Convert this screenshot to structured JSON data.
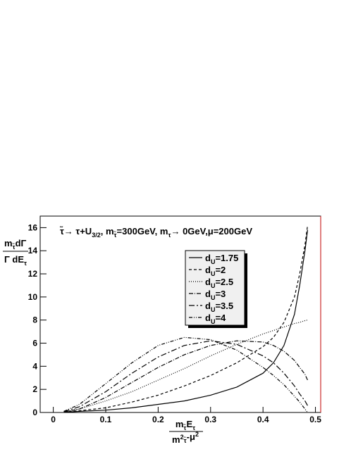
{
  "chart_data": {
    "type": "line",
    "title": [
      {
        "text": "τ̃→ τ+U"
      },
      {
        "text": "3/2",
        "shift": "sub"
      },
      {
        "text": ", m"
      },
      {
        "text": "τ̃",
        "shift": "sub"
      },
      {
        "text": "=300GeV, m"
      },
      {
        "text": "τ",
        "shift": "sub"
      },
      {
        "text": "→ 0GeV,μ=200GeV"
      }
    ],
    "ylabel": {
      "numerator": [
        {
          "text": "m"
        },
        {
          "text": "τ̃",
          "shift": "sub"
        },
        {
          "text": "dΓ"
        }
      ],
      "denominator": [
        {
          "text": "Γ dE"
        },
        {
          "text": "τ",
          "shift": "sub"
        }
      ]
    },
    "xlabel": {
      "numerator": [
        {
          "text": "m"
        },
        {
          "text": "τ̃",
          "shift": "sub"
        },
        {
          "text": "E"
        },
        {
          "text": "τ",
          "shift": "sub"
        }
      ],
      "denominator": [
        {
          "text": "m"
        },
        {
          "text": "2",
          "shift": "sup"
        },
        {
          "text": "τ̃",
          "shift": "sub"
        },
        {
          "text": "-μ"
        },
        {
          "text": "2",
          "shift": "sup"
        }
      ]
    },
    "x": [
      0.02,
      0.05,
      0.1,
      0.15,
      0.2,
      0.25,
      0.3,
      0.35,
      0.4,
      0.42,
      0.44,
      0.46,
      0.47,
      0.48,
      0.485
    ],
    "series": [
      {
        "name": {
          "base": "d",
          "sub": "U",
          "rest": "=1.75"
        },
        "color": "#000000",
        "dash": "none",
        "values": [
          0.02,
          0.1,
          0.2,
          0.4,
          0.7,
          1.0,
          1.5,
          2.2,
          3.4,
          4.3,
          5.8,
          8.5,
          11,
          14,
          15.8
        ]
      },
      {
        "name": {
          "base": "d",
          "sub": "U",
          "rest": "=2"
        },
        "color": "#000000",
        "dash": "4 3",
        "values": [
          0.03,
          0.15,
          0.4,
          0.9,
          1.5,
          2.3,
          3.2,
          4.3,
          5.7,
          6.5,
          7.8,
          10,
          12,
          14.5,
          16.2
        ]
      },
      {
        "name": {
          "base": "d",
          "sub": "U",
          "rest": "=2.5"
        },
        "color": "#000000",
        "dash": "1 2",
        "values": [
          0.05,
          0.3,
          1.0,
          1.8,
          2.8,
          3.8,
          4.9,
          5.9,
          6.8,
          7.1,
          7.4,
          7.7,
          7.8,
          7.95,
          8.0
        ]
      },
      {
        "name": {
          "base": "d",
          "sub": "U",
          "rest": "=3"
        },
        "color": "#000000",
        "dash": "6 2 1 2",
        "values": [
          0.05,
          0.3,
          1.3,
          2.6,
          3.9,
          5.0,
          5.8,
          6.2,
          6.1,
          5.8,
          5.3,
          4.5,
          3.9,
          3.3,
          2.8
        ]
      },
      {
        "name": {
          "base": "d",
          "sub": "U",
          "rest": "=3.5"
        },
        "color": "#000000",
        "dash": "8 3 2 3",
        "values": [
          0.08,
          0.5,
          1.8,
          3.4,
          4.8,
          5.8,
          6.2,
          5.9,
          4.9,
          4.3,
          3.4,
          2.3,
          1.6,
          1.0,
          0.6
        ]
      },
      {
        "name": {
          "base": "d",
          "sub": "U",
          "rest": "=4"
        },
        "color": "#000000",
        "dash": "5 2 1 2 1 2",
        "values": [
          0.1,
          0.7,
          2.5,
          4.3,
          5.8,
          6.5,
          6.3,
          5.4,
          3.9,
          3.2,
          2.4,
          1.4,
          0.9,
          0.3,
          0.0
        ]
      }
    ],
    "xlim": [
      -0.025,
      0.51
    ],
    "ylim": [
      0,
      17
    ],
    "xticks": [
      0,
      0.1,
      0.2,
      0.3,
      0.4,
      0.5
    ],
    "yticks": [
      0,
      2,
      4,
      6,
      8,
      10,
      12,
      14,
      16
    ],
    "legend": "upper-center",
    "frame_right_color": "#c00000"
  }
}
